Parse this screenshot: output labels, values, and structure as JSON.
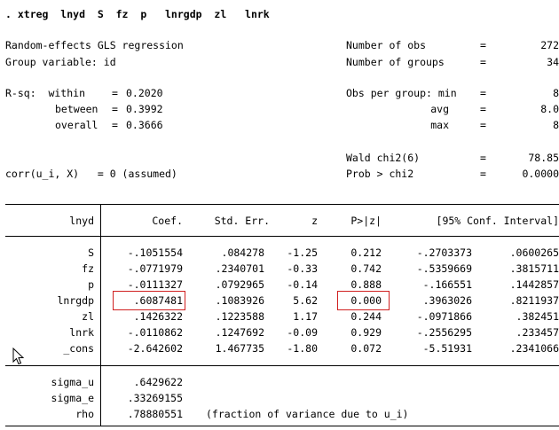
{
  "command": ". xtreg  lnyd  S  fz  p   lnrgdp  zl   lnrk",
  "header": {
    "title": "Random-effects GLS regression",
    "group_variable": "Group variable: id",
    "stats_left": [
      {
        "label": "R-sq:  within",
        "eq": "=",
        "value": "0.2020"
      },
      {
        "label": "between",
        "eq": "=",
        "value": "0.3992"
      },
      {
        "label": "overall",
        "eq": "=",
        "value": "0.3666"
      }
    ],
    "corr": "corr(u_i, X)   = 0 (assumed)",
    "stats_right": [
      {
        "label": "Number of obs",
        "eq": "=",
        "value": "272"
      },
      {
        "label": "Number of groups",
        "eq": "=",
        "value": "34"
      },
      {
        "label": "Obs per group: min",
        "eq": "=",
        "value": "8"
      },
      {
        "label": "avg",
        "eq": "=",
        "value": "8.0"
      },
      {
        "label": "max",
        "eq": "=",
        "value": "8"
      },
      {
        "label": "Wald chi2(6)",
        "eq": "=",
        "value": "78.85"
      },
      {
        "label": "Prob > chi2",
        "eq": "=",
        "value": "0.0000"
      }
    ]
  },
  "table": {
    "headers": {
      "var": "lnyd",
      "coef": "Coef.",
      "se": "Std. Err.",
      "z": "z",
      "p": "P>|z|",
      "ci": "[95% Conf. Interval]"
    },
    "rows": [
      {
        "var": "S",
        "coef": "-.1051554",
        "se": ".084278",
        "z": "-1.25",
        "p": "0.212",
        "lo": "-.2703373",
        "hi": ".0600265"
      },
      {
        "var": "fz",
        "coef": "-.0771979",
        "se": ".2340701",
        "z": "-0.33",
        "p": "0.742",
        "lo": "-.5359669",
        "hi": ".3815711"
      },
      {
        "var": "p",
        "coef": "-.0111327",
        "se": ".0792965",
        "z": "-0.14",
        "p": "0.888",
        "lo": "-.166551",
        "hi": ".1442857"
      },
      {
        "var": "lnrgdp",
        "coef": ".6087481",
        "se": ".1083926",
        "z": "5.62",
        "p": "0.000",
        "lo": ".3963026",
        "hi": ".8211937"
      },
      {
        "var": "zl",
        "coef": ".1426322",
        "se": ".1223588",
        "z": "1.17",
        "p": "0.244",
        "lo": "-.0971866",
        "hi": ".382451"
      },
      {
        "var": "lnrk",
        "coef": "-.0110862",
        "se": ".1247692",
        "z": "-0.09",
        "p": "0.929",
        "lo": "-.2556295",
        "hi": ".233457"
      },
      {
        "var": "_cons",
        "coef": "-2.642602",
        "se": "1.467735",
        "z": "-1.80",
        "p": "0.072",
        "lo": "-5.51931",
        "hi": ".2341066"
      }
    ],
    "sigma": [
      {
        "var": "sigma_u",
        "value": ".6429622"
      },
      {
        "var": "sigma_e",
        "value": ".33269155"
      },
      {
        "var": "rho",
        "value": ".78880551"
      }
    ],
    "rho_note": "(fraction of variance due to u_i)"
  },
  "colors": {
    "highlight_box": "#d02020"
  }
}
